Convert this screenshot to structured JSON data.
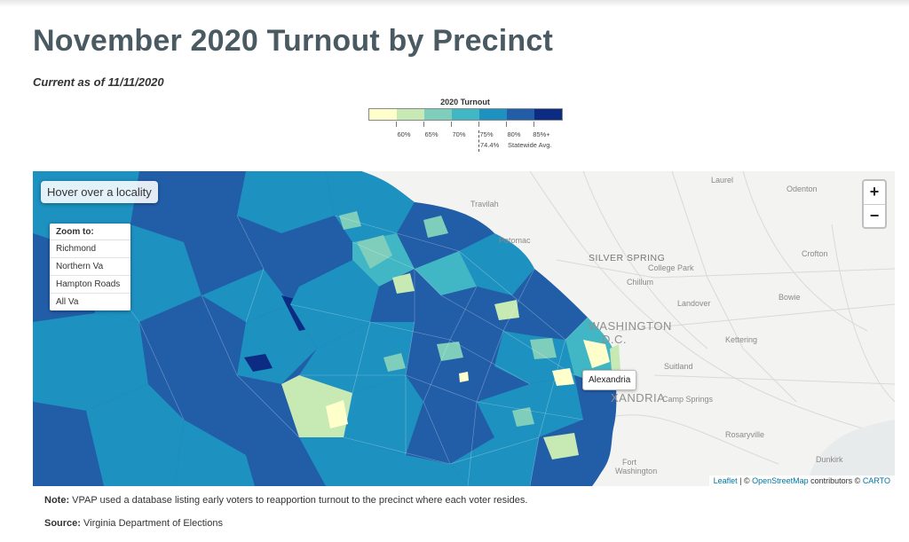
{
  "page": {
    "title": "November 2020 Turnout by Precinct",
    "subtitle": "Current as of 11/11/2020"
  },
  "legend": {
    "title": "2020 Turnout",
    "colors": [
      "#ffffcc",
      "#c7e9b4",
      "#7fcdbb",
      "#41b6c4",
      "#1d91c0",
      "#225ea8",
      "#0c2c84"
    ],
    "ticks": [
      "60%",
      "65%",
      "70%",
      "75%",
      "80%",
      "85%+"
    ],
    "statewide_avg_value": "74.4%",
    "statewide_avg_label": "Statewide Avg."
  },
  "map": {
    "hover_hint": "Hover over a locality",
    "zoom_to": {
      "title": "Zoom to:",
      "items": [
        "Richmond",
        "Northern Va",
        "Hampton Roads",
        "All Va"
      ]
    },
    "zoom_in": "+",
    "zoom_out": "−",
    "tooltip": "Alexandria",
    "places": {
      "laurel": "Laurel",
      "odenton": "Odenton",
      "travilah": "Travilah",
      "potomac": "Potomac",
      "silver_spring": "SILVER SPRING",
      "college_park": "College Park",
      "crofton": "Crofton",
      "chillum": "Chillum",
      "bowie": "Bowie",
      "landover": "Landover",
      "washington": "WASHINGTON",
      "dc": "D.C.",
      "kettering": "Kettering",
      "suitland": "Suitland",
      "alexandria_map": "XANDRIA",
      "camp_springs": "Camp Springs",
      "rosaryville": "Rosaryville",
      "fort_washington_1": "Fort",
      "fort_washington_2": "Washington",
      "dunkirk": "Dunkirk"
    },
    "attribution": {
      "leaflet": "Leaflet",
      "sep": " | © ",
      "osm": "OpenStreetMap",
      "contrib": " contributors © ",
      "carto": "CARTO"
    }
  },
  "footer": {
    "note_label": "Note:",
    "note_text": " VPAP used a database listing early voters to reapportion turnout to the precinct where each voter resides.",
    "source_label": "Source:",
    "source_text": " Virginia Department of Elections"
  }
}
